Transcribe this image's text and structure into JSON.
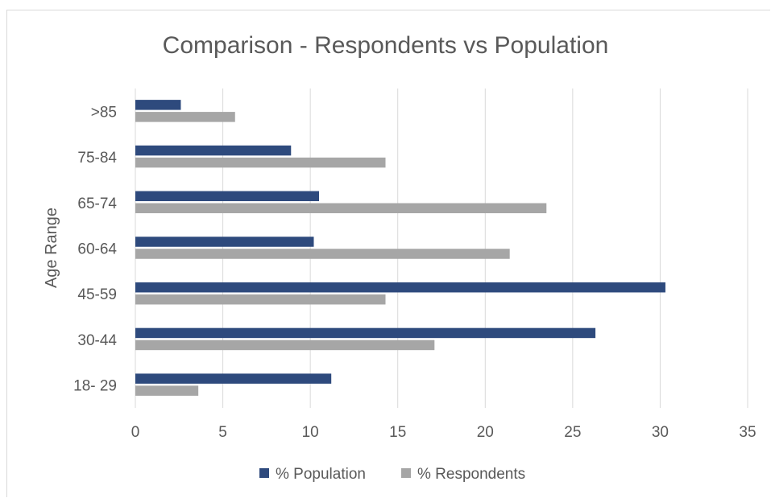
{
  "chart_data": {
    "type": "bar",
    "orientation": "horizontal",
    "title": "Comparison - Respondents vs Population",
    "xlabel": "",
    "ylabel": "Age Range",
    "categories": [
      "18- 29",
      "30-44",
      "45-59",
      "60-64",
      "65-74",
      "75-84",
      ">85"
    ],
    "series": [
      {
        "name": "% Population",
        "color": "#2e4a7d",
        "values": [
          11.2,
          26.3,
          30.3,
          10.2,
          10.5,
          8.9,
          2.6
        ]
      },
      {
        "name": "% Respondents",
        "color": "#a6a6a6",
        "values": [
          3.6,
          17.1,
          14.3,
          21.4,
          23.5,
          14.3,
          5.7
        ]
      }
    ],
    "xlim": [
      0,
      35
    ],
    "xticks": [
      0,
      5,
      10,
      15,
      20,
      25,
      30,
      35
    ],
    "grid": true,
    "legend_position": "bottom"
  }
}
